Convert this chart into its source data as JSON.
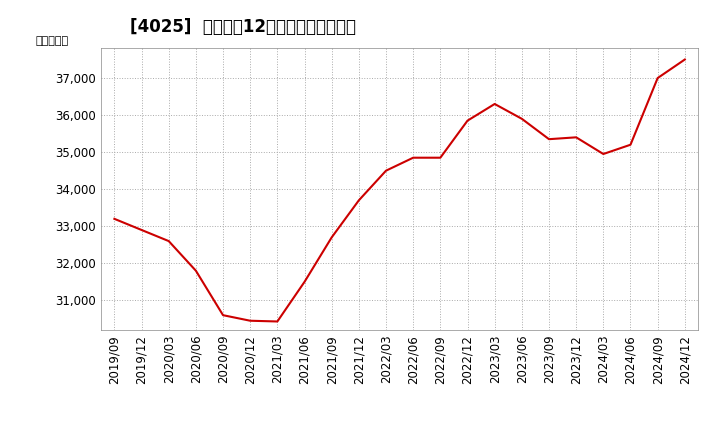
{
  "title": "[4025]  売上高の12か月移動合計の推移",
  "ylabel": "（百万円）",
  "line_color": "#cc0000",
  "background_color": "#ffffff",
  "plot_bg_color": "#ffffff",
  "grid_color": "#aaaaaa",
  "dates": [
    "2019/09",
    "2019/12",
    "2020/03",
    "2020/06",
    "2020/09",
    "2020/12",
    "2021/03",
    "2021/06",
    "2021/09",
    "2021/12",
    "2022/03",
    "2022/06",
    "2022/09",
    "2022/12",
    "2023/03",
    "2023/06",
    "2023/09",
    "2023/12",
    "2024/03",
    "2024/06",
    "2024/09",
    "2024/12"
  ],
  "values": [
    33200,
    32900,
    32600,
    31800,
    30600,
    30450,
    30430,
    31500,
    32700,
    33700,
    34500,
    34850,
    34850,
    35850,
    36300,
    35900,
    35350,
    35400,
    34950,
    35200,
    37000,
    37500
  ],
  "ytick_values": [
    31000,
    32000,
    33000,
    34000,
    35000,
    36000,
    37000
  ],
  "ylim": [
    30200,
    37800
  ],
  "title_fontsize": 12,
  "axis_fontsize": 8.5,
  "ylabel_fontsize": 8
}
